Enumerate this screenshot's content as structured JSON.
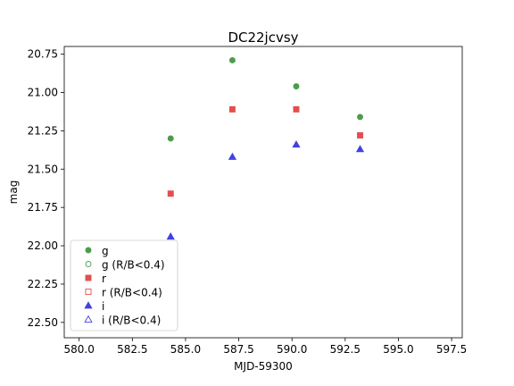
{
  "chart_data": {
    "type": "scatter",
    "title": "DC22jcvsy",
    "xlabel": "MJD-59300",
    "ylabel": "mag",
    "xlim": [
      579.3,
      598.0
    ],
    "ylim": [
      22.6,
      20.7
    ],
    "y_inverted": true,
    "grid": false,
    "legend_position": "lower-left",
    "xticks": [
      "580.0",
      "582.5",
      "585.0",
      "587.5",
      "590.0",
      "592.5",
      "595.0",
      "597.5"
    ],
    "yticks": [
      "20.75",
      "21.00",
      "21.25",
      "21.50",
      "21.75",
      "22.00",
      "22.25",
      "22.50"
    ],
    "series": [
      {
        "name": "g",
        "color": "#2e8b2e",
        "marker": "circle",
        "filled": true,
        "points": [
          [
            584.3,
            21.3
          ],
          [
            587.2,
            20.79
          ],
          [
            590.2,
            20.96
          ],
          [
            593.2,
            21.16
          ]
        ]
      },
      {
        "name": "g (R/B<0.4)",
        "color": "#2e8b2e",
        "marker": "circle",
        "filled": false,
        "points": []
      },
      {
        "name": "r",
        "color": "#e03030",
        "marker": "square",
        "filled": true,
        "points": [
          [
            584.3,
            21.66
          ],
          [
            587.2,
            21.11
          ],
          [
            590.2,
            21.11
          ],
          [
            593.2,
            21.28
          ]
        ]
      },
      {
        "name": "r (R/B<0.4)",
        "color": "#e03030",
        "marker": "square",
        "filled": false,
        "points": []
      },
      {
        "name": "i",
        "color": "#2020e0",
        "marker": "triangle",
        "filled": true,
        "points": [
          [
            584.3,
            21.94
          ],
          [
            587.2,
            21.42
          ],
          [
            590.2,
            21.34
          ],
          [
            593.2,
            21.37
          ]
        ]
      },
      {
        "name": "i (R/B<0.4)",
        "color": "#2020e0",
        "marker": "triangle",
        "filled": false,
        "points": []
      }
    ]
  }
}
